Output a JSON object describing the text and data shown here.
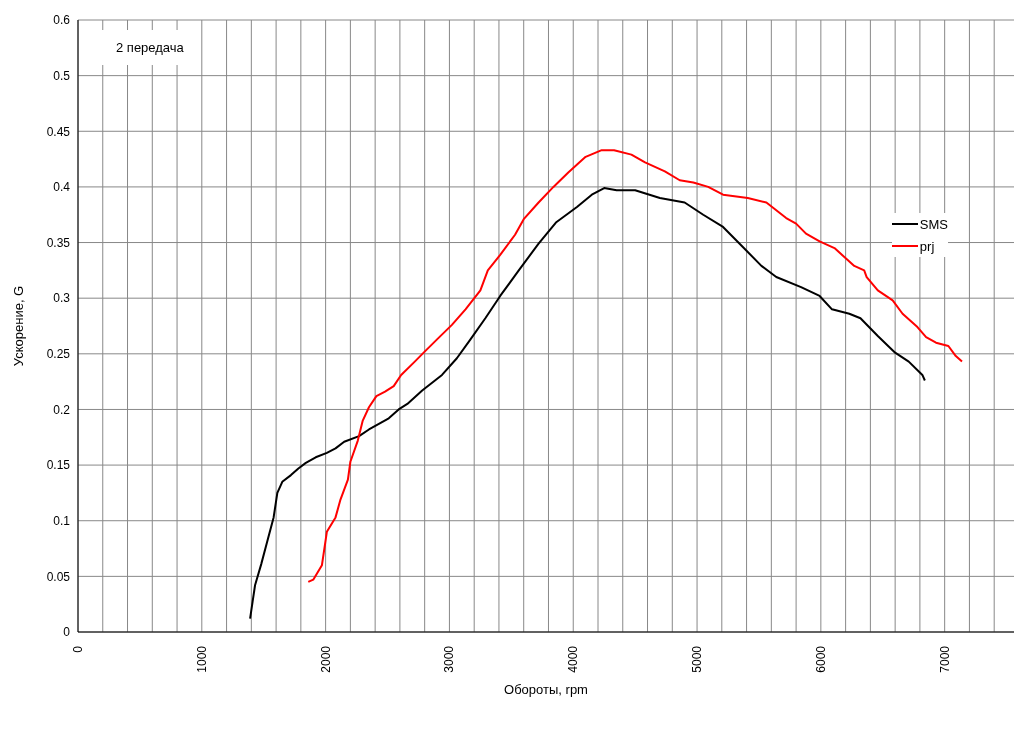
{
  "chart_data": {
    "type": "line",
    "title": "2 передача",
    "xlabel": "Обороты, rpm",
    "ylabel": "Ускорение, G",
    "xlim": [
      0,
      7560
    ],
    "xticks": [
      0,
      {
        "value": 200,
        "label": null
      },
      {
        "value": 400,
        "label": null
      },
      {
        "value": 600,
        "label": null
      },
      {
        "value": 800,
        "label": null
      },
      1000,
      {
        "value": 1200,
        "label": null
      },
      {
        "value": 1400,
        "label": null
      },
      {
        "value": 1600,
        "label": null
      },
      {
        "value": 1800,
        "label": null
      },
      2000,
      {
        "value": 2200,
        "label": null
      },
      {
        "value": 2400,
        "label": null
      },
      {
        "value": 2600,
        "label": null
      },
      {
        "value": 2800,
        "label": null
      },
      3000,
      {
        "value": 3200,
        "label": null
      },
      {
        "value": 3400,
        "label": null
      },
      {
        "value": 3600,
        "label": null
      },
      {
        "value": 3800,
        "label": null
      },
      4000,
      {
        "value": 4200,
        "label": null
      },
      {
        "value": 4400,
        "label": null
      },
      {
        "value": 4600,
        "label": null
      },
      {
        "value": 4800,
        "label": null
      },
      5000,
      {
        "value": 5200,
        "label": null
      },
      {
        "value": 5400,
        "label": null
      },
      {
        "value": 5600,
        "label": null
      },
      {
        "value": 5800,
        "label": null
      },
      6000,
      {
        "value": 6200,
        "label": null
      },
      {
        "value": 6400,
        "label": null
      },
      {
        "value": 6600,
        "label": null
      },
      {
        "value": 6800,
        "label": null
      },
      7000,
      {
        "value": 7200,
        "label": null
      },
      {
        "value": 7400,
        "label": null
      }
    ],
    "ylim": [
      0,
      0.55
    ],
    "yticks": [
      0,
      0.05,
      0.1,
      0.15,
      0.2,
      0.25,
      0.3,
      0.35,
      0.4,
      0.45,
      0.5,
      {
        "value": 0.55,
        "label": "0.6"
      }
    ],
    "grid": true,
    "legend": "right",
    "marker": "none",
    "line_style": "solid",
    "series": [
      {
        "name": "SMS",
        "color": "#000000",
        "x": [
          1390,
          1410,
          1430,
          1480,
          1530,
          1580,
          1610,
          1650,
          1720,
          1780,
          1840,
          1920,
          2010,
          2080,
          2150,
          2270,
          2350,
          2430,
          2510,
          2590,
          2660,
          2780,
          2940,
          3060,
          3170,
          3290,
          3410,
          3560,
          3720,
          3860,
          4030,
          4150,
          4250,
          4350,
          4500,
          4700,
          4900,
          5050,
          5210,
          5370,
          5520,
          5640,
          5840,
          5990,
          6090,
          6230,
          6320,
          6460,
          6600,
          6710,
          6820,
          6840
        ],
        "values": [
          0.012,
          0.027,
          0.042,
          0.061,
          0.082,
          0.103,
          0.125,
          0.135,
          0.141,
          0.147,
          0.152,
          0.157,
          0.161,
          0.165,
          0.171,
          0.176,
          0.182,
          0.187,
          0.192,
          0.2,
          0.205,
          0.217,
          0.231,
          0.246,
          0.263,
          0.282,
          0.302,
          0.325,
          0.349,
          0.368,
          0.382,
          0.393,
          0.399,
          0.397,
          0.397,
          0.39,
          0.386,
          0.375,
          0.364,
          0.346,
          0.329,
          0.319,
          0.31,
          0.302,
          0.29,
          0.286,
          0.282,
          0.266,
          0.251,
          0.243,
          0.231,
          0.226
        ]
      },
      {
        "name": "prj",
        "color": "#ff0000",
        "x": [
          1860,
          1900,
          1970,
          2010,
          2080,
          2120,
          2180,
          2200,
          2260,
          2300,
          2350,
          2410,
          2480,
          2550,
          2610,
          2720,
          2800,
          2900,
          3020,
          3130,
          3250,
          3310,
          3410,
          3530,
          3600,
          3720,
          3840,
          3960,
          4100,
          4230,
          4330,
          4470,
          4580,
          4740,
          4860,
          4970,
          5090,
          5210,
          5410,
          5560,
          5720,
          5800,
          5880,
          5990,
          6110,
          6210,
          6270,
          6350,
          6370,
          6460,
          6580,
          6660,
          6780,
          6850,
          6930,
          7030,
          7090,
          7140
        ],
        "values": [
          0.045,
          0.047,
          0.06,
          0.09,
          0.103,
          0.119,
          0.137,
          0.153,
          0.172,
          0.19,
          0.202,
          0.212,
          0.216,
          0.221,
          0.231,
          0.243,
          0.252,
          0.263,
          0.276,
          0.29,
          0.307,
          0.325,
          0.339,
          0.357,
          0.371,
          0.386,
          0.4,
          0.413,
          0.427,
          0.433,
          0.433,
          0.429,
          0.422,
          0.414,
          0.406,
          0.404,
          0.4,
          0.393,
          0.39,
          0.386,
          0.372,
          0.367,
          0.358,
          0.351,
          0.345,
          0.335,
          0.329,
          0.325,
          0.319,
          0.307,
          0.298,
          0.286,
          0.274,
          0.265,
          0.26,
          0.257,
          0.248,
          0.243
        ]
      }
    ]
  }
}
